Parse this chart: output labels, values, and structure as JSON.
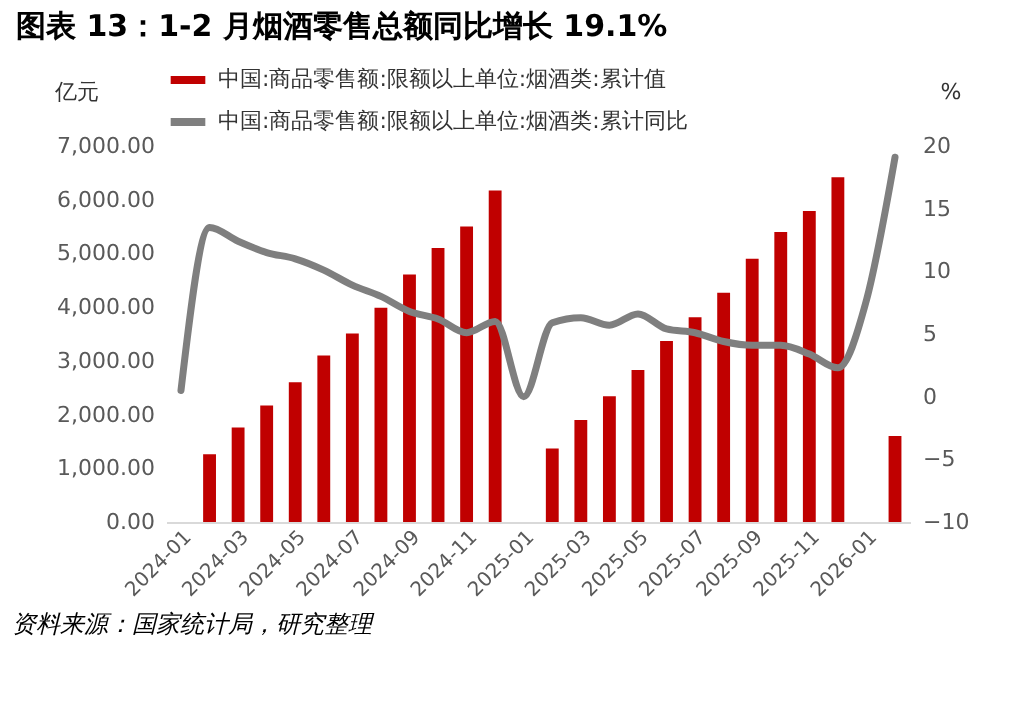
{
  "chart_data": {
    "type": "bar",
    "title": "图表 13：1-2 月烟酒零售总额同比增长 19.1%",
    "categories": [
      "2024-01",
      null,
      "2024-03",
      null,
      "2024-05",
      null,
      "2024-07",
      null,
      "2024-09",
      null,
      "2024-11",
      null,
      "2025-01",
      null,
      "2025-03",
      null,
      "2025-05",
      null,
      "2025-07",
      null,
      "2025-09",
      null,
      "2025-11",
      null,
      "2026-01",
      null
    ],
    "series": [
      {
        "name": "中国:商品零售额:限额以上单位:烟酒类:累计值",
        "color": "#c00000",
        "values": [
          null,
          1260,
          1760,
          2170,
          2600,
          3100,
          3510,
          3990,
          4610,
          5100,
          5500,
          6170,
          null,
          1370,
          1900,
          2340,
          2830,
          3370,
          3810,
          4270,
          4900,
          5400,
          5790,
          6420,
          null,
          1600
        ]
      },
      {
        "name": "中国:商品零售额:限额以上单位:烟酒类:累计同比",
        "type": "line",
        "axis": "y2",
        "color": "#7f7f7f",
        "values": [
          0.5,
          13.5,
          12.4,
          11.5,
          11.0,
          10.1,
          8.9,
          8.0,
          6.8,
          6.2,
          5.1,
          6.0,
          0,
          5.9,
          6.3,
          5.7,
          6.6,
          5.4,
          5.1,
          4.4,
          4.1,
          4.1,
          3.4,
          2.3,
          7.7,
          19.1
        ]
      }
    ],
    "ylabel": "亿元",
    "y2label": "%",
    "ylim": [
      0,
      7000
    ],
    "yticks": [
      {
        "value": 0,
        "label": "0.00"
      },
      {
        "value": 1000,
        "label": "1,000.00"
      },
      {
        "value": 2000,
        "label": "2,000.00"
      },
      {
        "value": 3000,
        "label": "3,000.00"
      },
      {
        "value": 4000,
        "label": "4,000.00"
      },
      {
        "value": 5000,
        "label": "5,000.00"
      },
      {
        "value": 6000,
        "label": "6,000.00"
      },
      {
        "value": 7000,
        "label": "7,000.00"
      }
    ],
    "y2lim": [
      -10,
      20
    ],
    "y2ticks": [
      -10,
      -5,
      0,
      5,
      10,
      15,
      20
    ],
    "legend": "top",
    "annotations": [
      "资料来源：国家统计局，研究整理"
    ]
  }
}
